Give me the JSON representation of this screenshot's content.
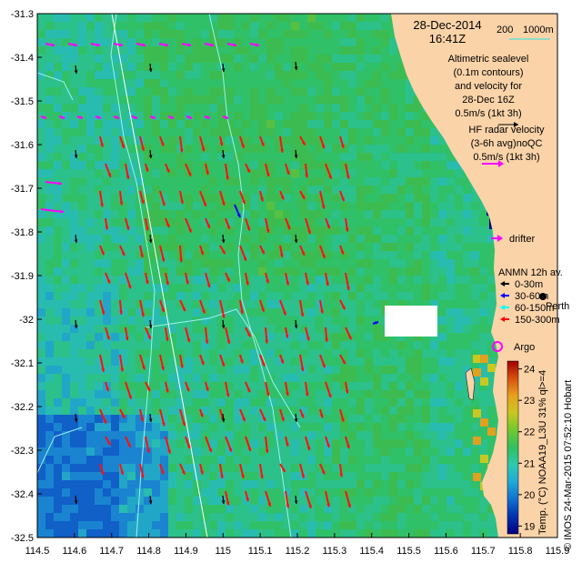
{
  "title": {
    "date": "28-Dec-2014",
    "time": "16:41Z"
  },
  "depth_scale": {
    "label_200": "200",
    "label_1000": "1000m",
    "color": "#6fe0cf"
  },
  "altimetry_legend": {
    "lines": [
      "Altimetric sealevel",
      "(0.1m contours)",
      "and velocity for",
      "28-Dec 16Z",
      "0.5m/s (1kt 3h)"
    ]
  },
  "hf_legend": {
    "lines": [
      "HF radar velocity",
      "(3-6h avg)noQC",
      "0.5m/s (1kt 3h)"
    ],
    "color": "#ff00ff"
  },
  "drifter_legend": {
    "label": "drifter",
    "color": "#ff00ff"
  },
  "anmn_legend": {
    "title": "ANMN 12h av.",
    "items": [
      {
        "label": "0-30m",
        "color": "#000000"
      },
      {
        "label": "30-60m",
        "color": "#0000ff"
      },
      {
        "label": "60-150m",
        "color": "#00ffff"
      },
      {
        "label": "150-300m",
        "color": "#ff0000"
      }
    ]
  },
  "place_label": "Perth",
  "argo_label": "Argo",
  "colorbar": {
    "ticks": [
      "24",
      "23",
      "22",
      "21",
      "20",
      "19"
    ],
    "caption": "Temp. (°C) NOAA19_L3U 31% ql>=4",
    "colors": [
      "#000080",
      "#0040c0",
      "#2090d0",
      "#30c0c0",
      "#30c060",
      "#60c030",
      "#c0c020",
      "#e0a020",
      "#d05010",
      "#a00000"
    ]
  },
  "credit": "© IMOS 24-Mar-2015 07:52:10 Hobart",
  "chart_data": {
    "type": "heatmap",
    "xlim": [
      114.5,
      115.9
    ],
    "ylim": [
      -32.5,
      -31.3
    ],
    "x_ticks": [
      "114.5",
      "114.6",
      "114.7",
      "114.8",
      "114.9",
      "115",
      "115.1",
      "115.2",
      "115.3",
      "115.4",
      "115.5",
      "115.6",
      "115.7",
      "115.8",
      "115.9"
    ],
    "y_ticks": [
      "-31.3",
      "-31.4",
      "-31.5",
      "-31.6",
      "-31.7",
      "-31.8",
      "-31.9",
      "-32",
      "-32.1",
      "-32.2",
      "-32.3",
      "-32.4",
      "-32.5"
    ],
    "color_range": [
      19,
      24
    ],
    "color_unit": "°C"
  }
}
